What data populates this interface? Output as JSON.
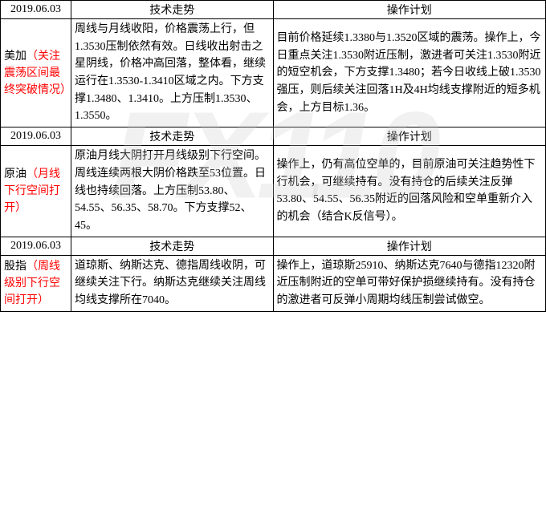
{
  "watermark": "FX110",
  "headers": {
    "date": "2019.06.03",
    "trend": "技术走势",
    "plan": "操作计划"
  },
  "sections": [
    {
      "label_black": "美加",
      "label_red": "（关注震荡区间最终突破情况）",
      "trend": "周线与月线收阳，价格震荡上行，但1.3530压制依然有效。日线收出射击之星阴线，价格冲高回落，整体看，继续运行在1.3530-1.3410区域之内。下方支撑1.3480、1.3410。上方压制1.3530、1.3550。",
      "plan": "目前价格延续1.3380与1.3520区域的震荡。操作上，今日重点关注1.3530附近压制，激进者可关注1.3530附近的短空机会，下方支撑1.3480；若今日收线上破1.3530强压，则后续关注回落1H及4H均线支撑附近的短多机会，上方目标1.36。"
    },
    {
      "label_black": "原油",
      "label_red": "（月线下行空间打开）",
      "trend": "原油月线大阴打开月线级别下行空间。周线连续两根大阴价格跌至53位置。日线也持续回落。上方压制53.80、54.55、56.35、58.70。下方支撑52、45。",
      "plan": "操作上，仍有高位空单的，目前原油可关注趋势性下行机会，可继续持有。没有持仓的后续关注反弹53.80、54.55、56.35附近的回落风险和空单重新介入的机会（结合K反信号）。"
    },
    {
      "label_black": "股指",
      "label_red": "（周线级别下行空间打开）",
      "trend": "道琼斯、纳斯达克、德指周线收阴，可继续关注下行。纳斯达克继续关注周线均线支撑所在7040。",
      "plan": "操作上，道琼斯25910、纳斯达克7640与德指12320附近压制附近的空单可带好保护损继续持有。没有持仓的激进者可反弹小周期均线压制尝试做空。"
    }
  ],
  "style": {
    "border_color": "#000000",
    "red": "#ff0000",
    "bg": "#ffffff",
    "watermark_color": "rgba(200,200,200,0.25)"
  }
}
